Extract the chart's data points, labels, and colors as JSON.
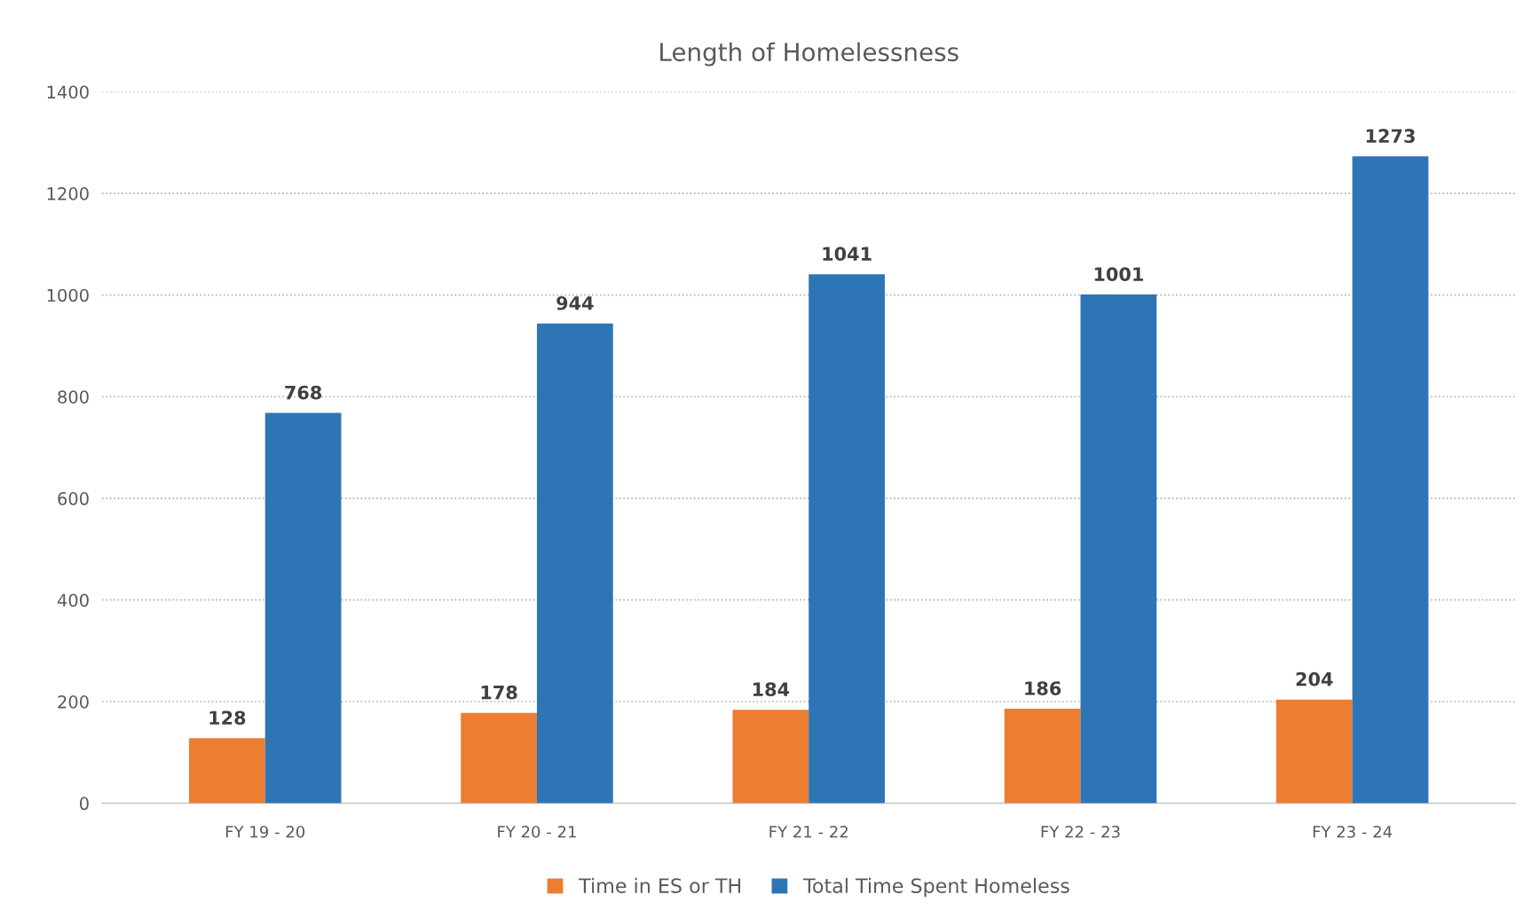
{
  "chart_data": {
    "type": "bar",
    "title": "Length of Homelessness",
    "categories": [
      "FY 19 - 20",
      "FY 20 - 21",
      "FY 21 - 22",
      "FY 22 - 23",
      "FY 23 - 24"
    ],
    "series": [
      {
        "name": "Time in ES or TH",
        "color": "#ed7d31",
        "values": [
          128,
          178,
          184,
          186,
          204
        ]
      },
      {
        "name": "Total Time Spent Homeless",
        "color": "#2e75b6",
        "values": [
          768,
          944,
          1041,
          1001,
          1273
        ]
      }
    ],
    "ylim": [
      0,
      1400
    ],
    "yticks": [
      0,
      200,
      400,
      600,
      800,
      1000,
      1200,
      1400
    ],
    "grid": "y",
    "legend": "bottom",
    "data_labels": true
  }
}
